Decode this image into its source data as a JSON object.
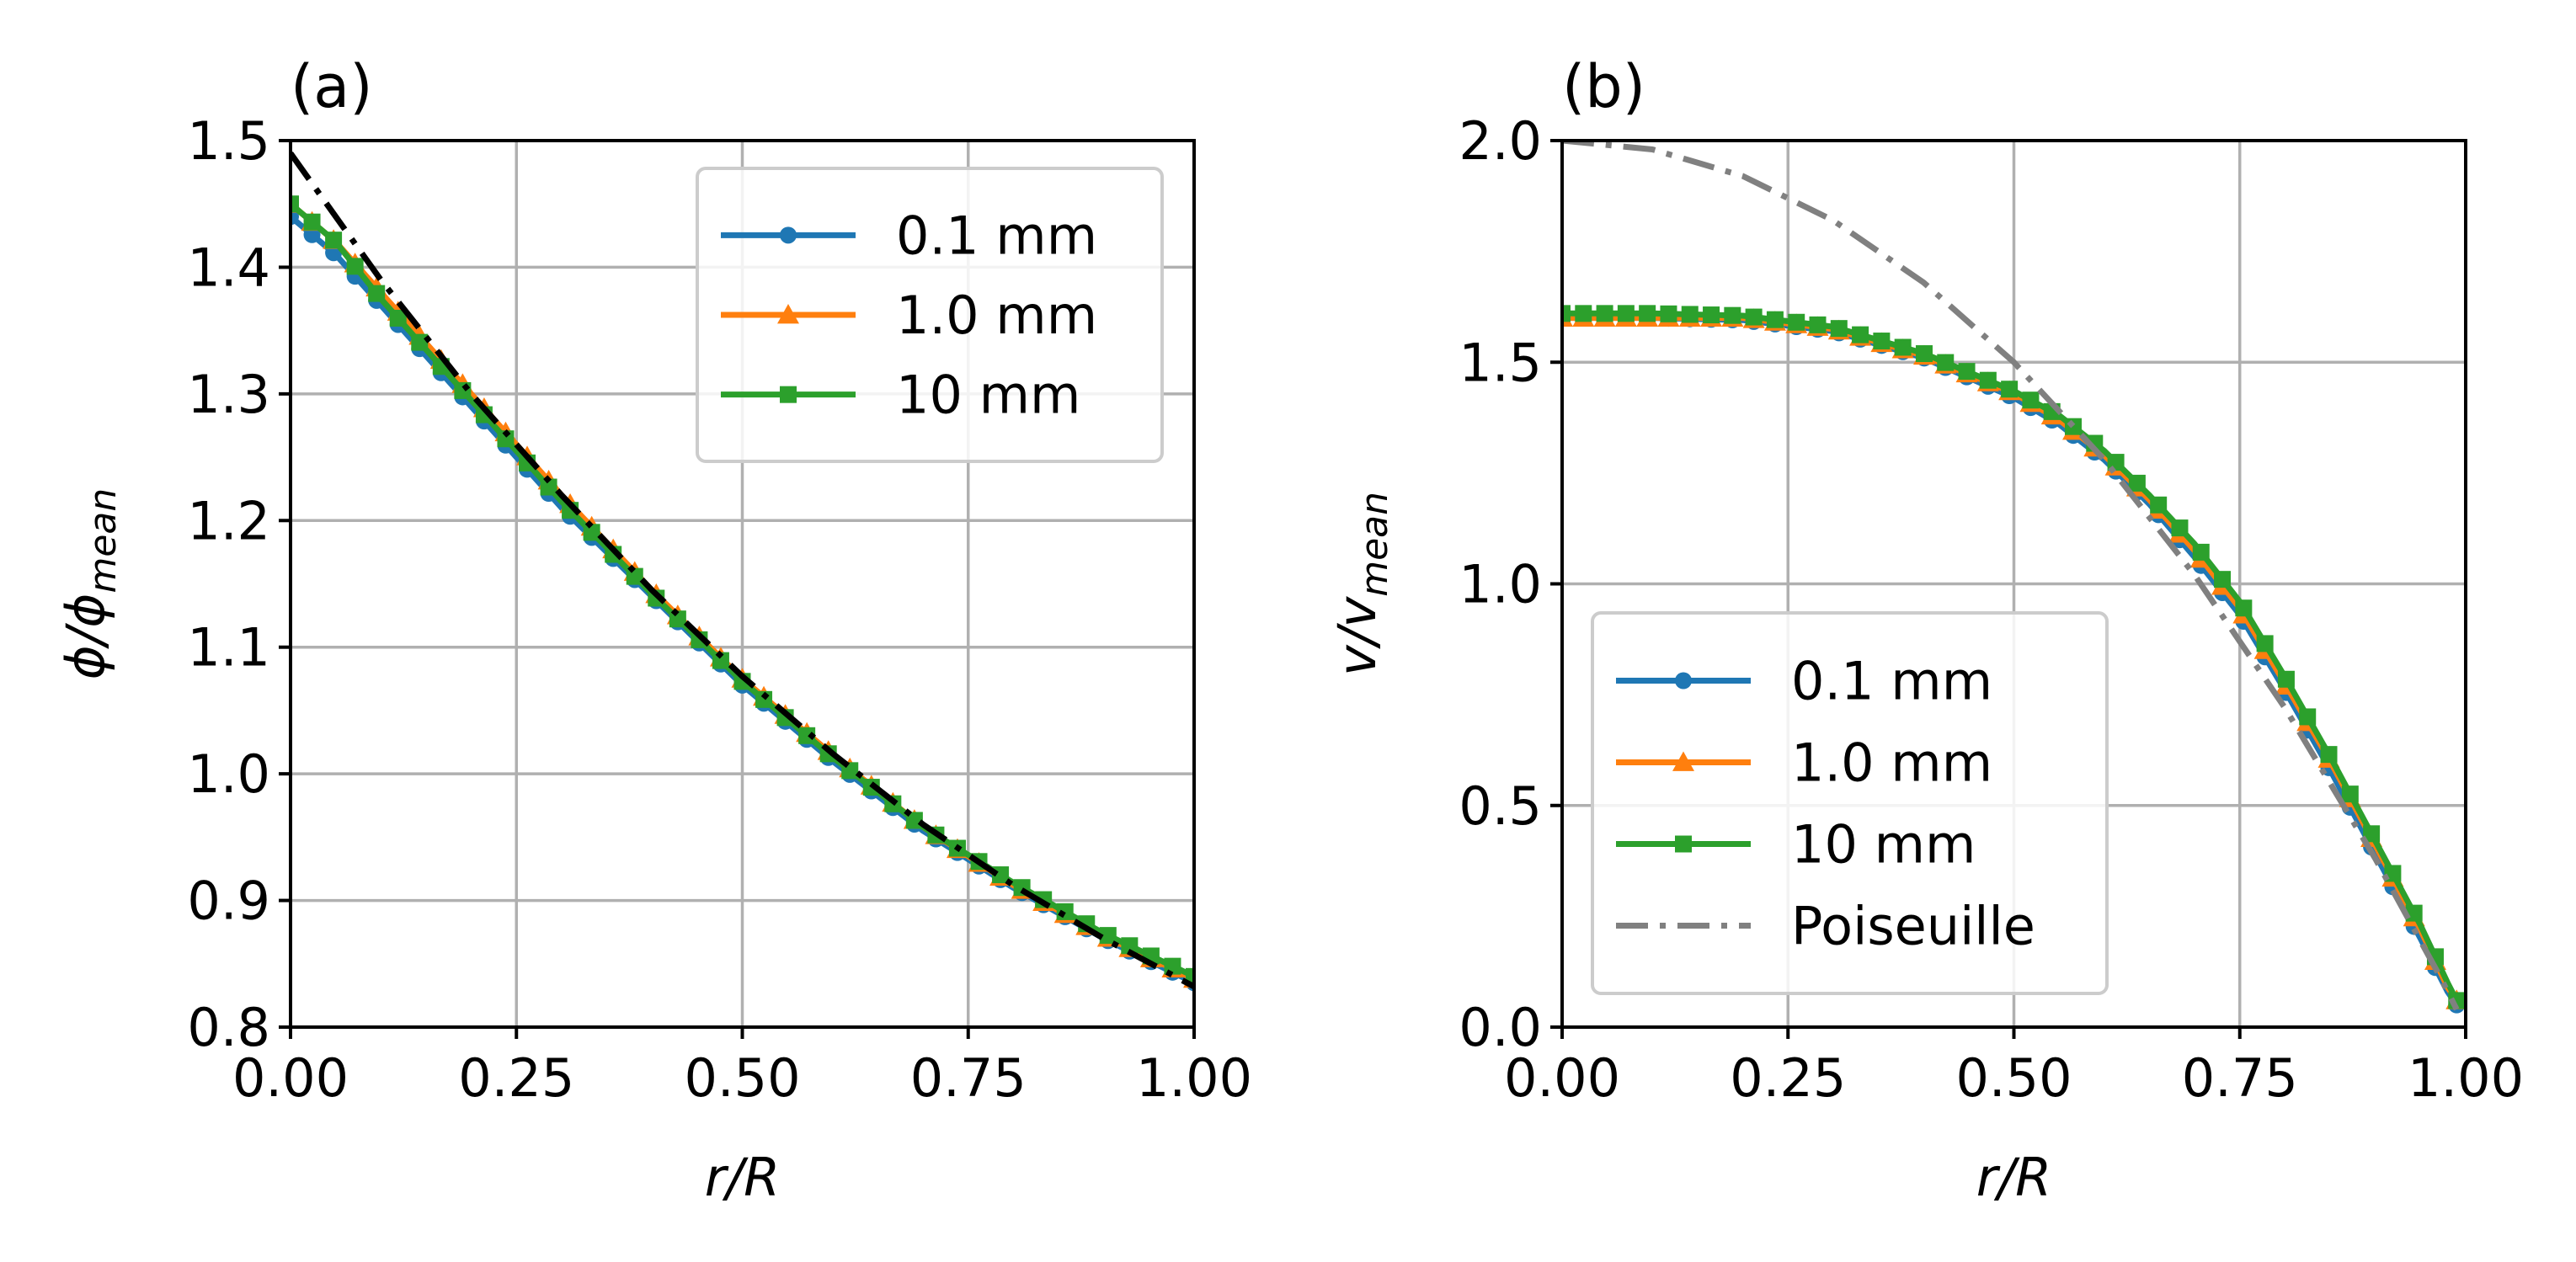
{
  "chart_data": [
    {
      "type": "line",
      "title": "(a)",
      "xlabel": "r/R",
      "ylabel": "ϕ/ϕ_mean",
      "ylabel_main": "ϕ/ϕ",
      "ylabel_sub": "mean",
      "xlim": [
        0.0,
        1.0
      ],
      "ylim": [
        0.8,
        1.5
      ],
      "xticks": [
        "0.00",
        "0.25",
        "0.50",
        "0.75",
        "1.00"
      ],
      "yticks": [
        "0.8",
        "0.9",
        "1.0",
        "1.1",
        "1.2",
        "1.3",
        "1.4",
        "1.5"
      ],
      "grid": true,
      "legend_position": "top-right",
      "series": [
        {
          "name": "0.1 mm",
          "color": "#1f77b4",
          "marker": "circle",
          "style": "solid",
          "points": [
            [
              0.0,
              1.44
            ],
            [
              0.05,
              1.41
            ],
            [
              0.1,
              1.37
            ],
            [
              0.2,
              1.29
            ],
            [
              0.3,
              1.21
            ],
            [
              0.4,
              1.14
            ],
            [
              0.5,
              1.07
            ],
            [
              0.6,
              1.01
            ],
            [
              0.7,
              0.955
            ],
            [
              0.8,
              0.91
            ],
            [
              0.9,
              0.87
            ],
            [
              1.0,
              0.835
            ]
          ]
        },
        {
          "name": "1.0 mm",
          "color": "#ff7f0e",
          "marker": "triangle",
          "style": "solid",
          "points": [
            [
              0.0,
              1.45
            ],
            [
              0.05,
              1.42
            ],
            [
              0.1,
              1.38
            ],
            [
              0.2,
              1.3
            ],
            [
              0.3,
              1.22
            ],
            [
              0.4,
              1.145
            ],
            [
              0.5,
              1.075
            ],
            [
              0.6,
              1.015
            ],
            [
              0.7,
              0.958
            ],
            [
              0.8,
              0.912
            ],
            [
              0.9,
              0.872
            ],
            [
              1.0,
              0.838
            ]
          ]
        },
        {
          "name": "10 mm",
          "color": "#2ca02c",
          "marker": "square",
          "style": "solid",
          "points": [
            [
              0.0,
              1.45
            ],
            [
              0.05,
              1.42
            ],
            [
              0.1,
              1.375
            ],
            [
              0.2,
              1.295
            ],
            [
              0.3,
              1.215
            ],
            [
              0.4,
              1.142
            ],
            [
              0.5,
              1.073
            ],
            [
              0.6,
              1.013
            ],
            [
              0.7,
              0.958
            ],
            [
              0.8,
              0.914
            ],
            [
              0.9,
              0.874
            ],
            [
              1.0,
              0.84
            ]
          ]
        },
        {
          "name": "",
          "color": "#000000",
          "marker": "none",
          "style": "dashdot",
          "points": [
            [
              0.0,
              1.49
            ],
            [
              0.1,
              1.39
            ],
            [
              0.2,
              1.3
            ],
            [
              0.3,
              1.22
            ],
            [
              0.4,
              1.145
            ],
            [
              0.5,
              1.077
            ],
            [
              0.6,
              1.016
            ],
            [
              0.7,
              0.96
            ],
            [
              0.8,
              0.912
            ],
            [
              0.9,
              0.87
            ],
            [
              1.0,
              0.832
            ]
          ]
        }
      ]
    },
    {
      "type": "line",
      "title": "(b)",
      "xlabel": "r/R",
      "ylabel": "v/v_mean",
      "ylabel_main": "v/v",
      "ylabel_sub": "mean",
      "xlim": [
        0.0,
        1.0
      ],
      "ylim": [
        0.0,
        2.0
      ],
      "xticks": [
        "0.00",
        "0.25",
        "0.50",
        "0.75",
        "1.00"
      ],
      "yticks": [
        "0.0",
        "0.5",
        "1.0",
        "1.5",
        "2.0"
      ],
      "grid": true,
      "legend_position": "bottom-left",
      "series": [
        {
          "name": "0.1 mm",
          "color": "#1f77b4",
          "marker": "circle",
          "style": "solid",
          "points": [
            [
              0.0,
              1.6
            ],
            [
              0.1,
              1.6
            ],
            [
              0.2,
              1.595
            ],
            [
              0.3,
              1.57
            ],
            [
              0.4,
              1.51
            ],
            [
              0.5,
              1.42
            ],
            [
              0.55,
              1.36
            ],
            [
              0.6,
              1.28
            ],
            [
              0.65,
              1.18
            ],
            [
              0.7,
              1.06
            ],
            [
              0.75,
              0.93
            ],
            [
              0.8,
              0.76
            ],
            [
              0.85,
              0.58
            ],
            [
              0.9,
              0.39
            ],
            [
              0.95,
              0.2
            ],
            [
              0.98,
              0.08
            ],
            [
              0.99,
              0.05
            ]
          ]
        },
        {
          "name": "1.0 mm",
          "color": "#ff7f0e",
          "marker": "triangle",
          "style": "solid",
          "points": [
            [
              0.0,
              1.6
            ],
            [
              0.1,
              1.6
            ],
            [
              0.2,
              1.6
            ],
            [
              0.3,
              1.575
            ],
            [
              0.4,
              1.515
            ],
            [
              0.5,
              1.43
            ],
            [
              0.55,
              1.37
            ],
            [
              0.6,
              1.29
            ],
            [
              0.65,
              1.19
            ],
            [
              0.7,
              1.075
            ],
            [
              0.75,
              0.945
            ],
            [
              0.8,
              0.775
            ],
            [
              0.85,
              0.6
            ],
            [
              0.9,
              0.41
            ],
            [
              0.95,
              0.22
            ],
            [
              0.98,
              0.09
            ],
            [
              0.99,
              0.06
            ]
          ]
        },
        {
          "name": "10 mm",
          "color": "#2ca02c",
          "marker": "square",
          "style": "solid",
          "points": [
            [
              0.0,
              1.61
            ],
            [
              0.1,
              1.61
            ],
            [
              0.2,
              1.605
            ],
            [
              0.3,
              1.58
            ],
            [
              0.4,
              1.52
            ],
            [
              0.5,
              1.435
            ],
            [
              0.55,
              1.38
            ],
            [
              0.6,
              1.3
            ],
            [
              0.65,
              1.2
            ],
            [
              0.7,
              1.09
            ],
            [
              0.75,
              0.96
            ],
            [
              0.8,
              0.79
            ],
            [
              0.85,
              0.61
            ],
            [
              0.9,
              0.42
            ],
            [
              0.95,
              0.23
            ],
            [
              0.98,
              0.1
            ],
            [
              0.99,
              0.06
            ]
          ]
        },
        {
          "name": "Poiseuille",
          "color": "#808080",
          "marker": "none",
          "style": "dashdot",
          "points": [
            [
              0.0,
              2.0
            ],
            [
              0.1,
              1.98
            ],
            [
              0.2,
              1.92
            ],
            [
              0.3,
              1.82
            ],
            [
              0.4,
              1.68
            ],
            [
              0.5,
              1.5
            ],
            [
              0.6,
              1.28
            ],
            [
              0.7,
              1.02
            ],
            [
              0.8,
              0.72
            ],
            [
              0.9,
              0.38
            ],
            [
              0.97,
              0.12
            ],
            [
              0.99,
              0.04
            ]
          ]
        }
      ]
    }
  ]
}
